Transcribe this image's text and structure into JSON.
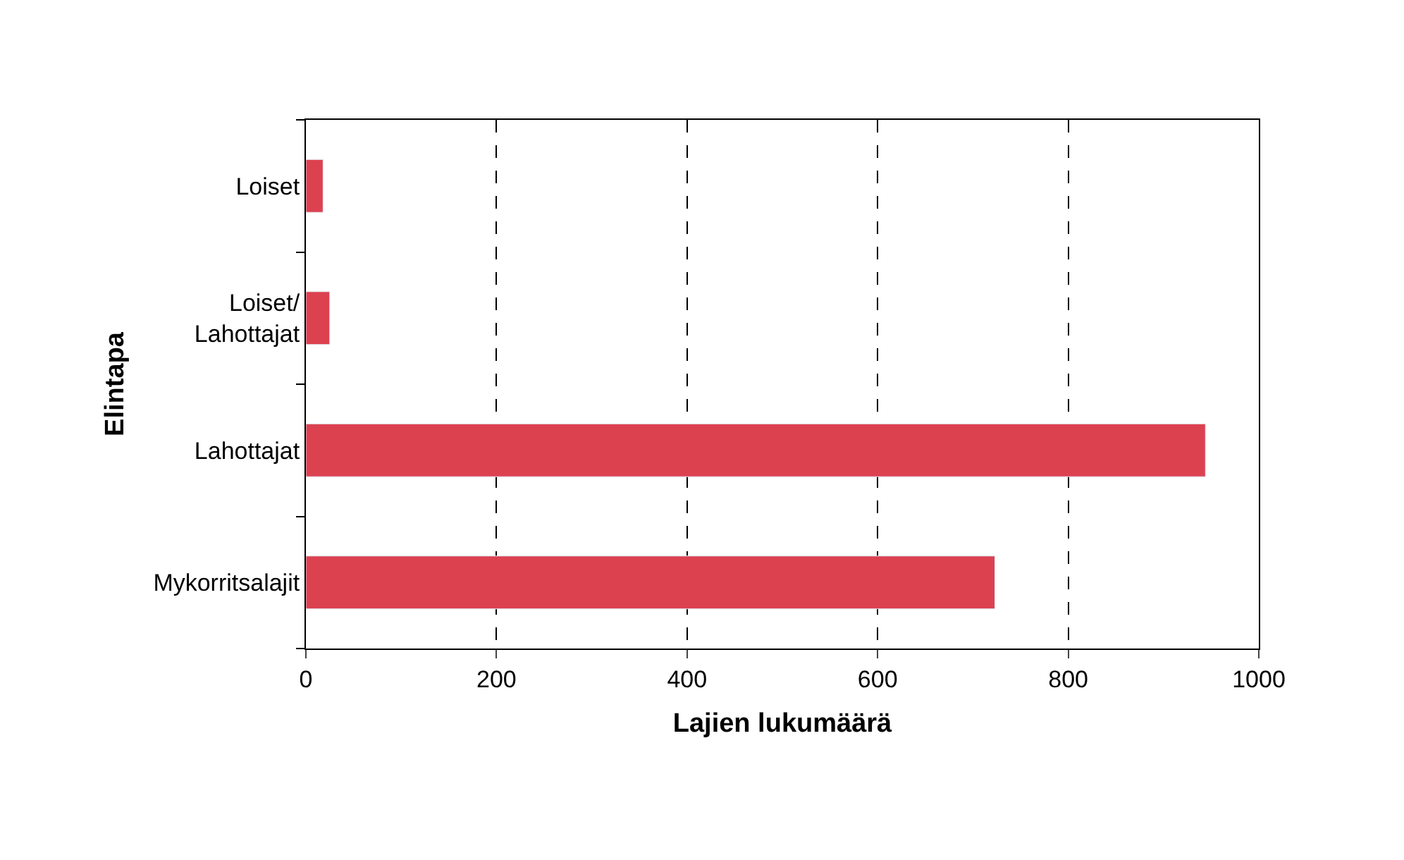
{
  "chart_data": {
    "type": "bar",
    "orientation": "horizontal",
    "xlabel": "Lajien lukumäärä",
    "ylabel": "Elintapa",
    "categories": [
      "Loiset",
      "Loiset/\nLahottajat",
      "Lahottajat",
      "Mykorritsalajit"
    ],
    "values": [
      18,
      25,
      944,
      723
    ],
    "color": "#dc4150",
    "xlim": [
      0,
      1000
    ],
    "xticks": [
      0,
      200,
      400,
      600,
      800,
      1000
    ],
    "grid": "x"
  }
}
